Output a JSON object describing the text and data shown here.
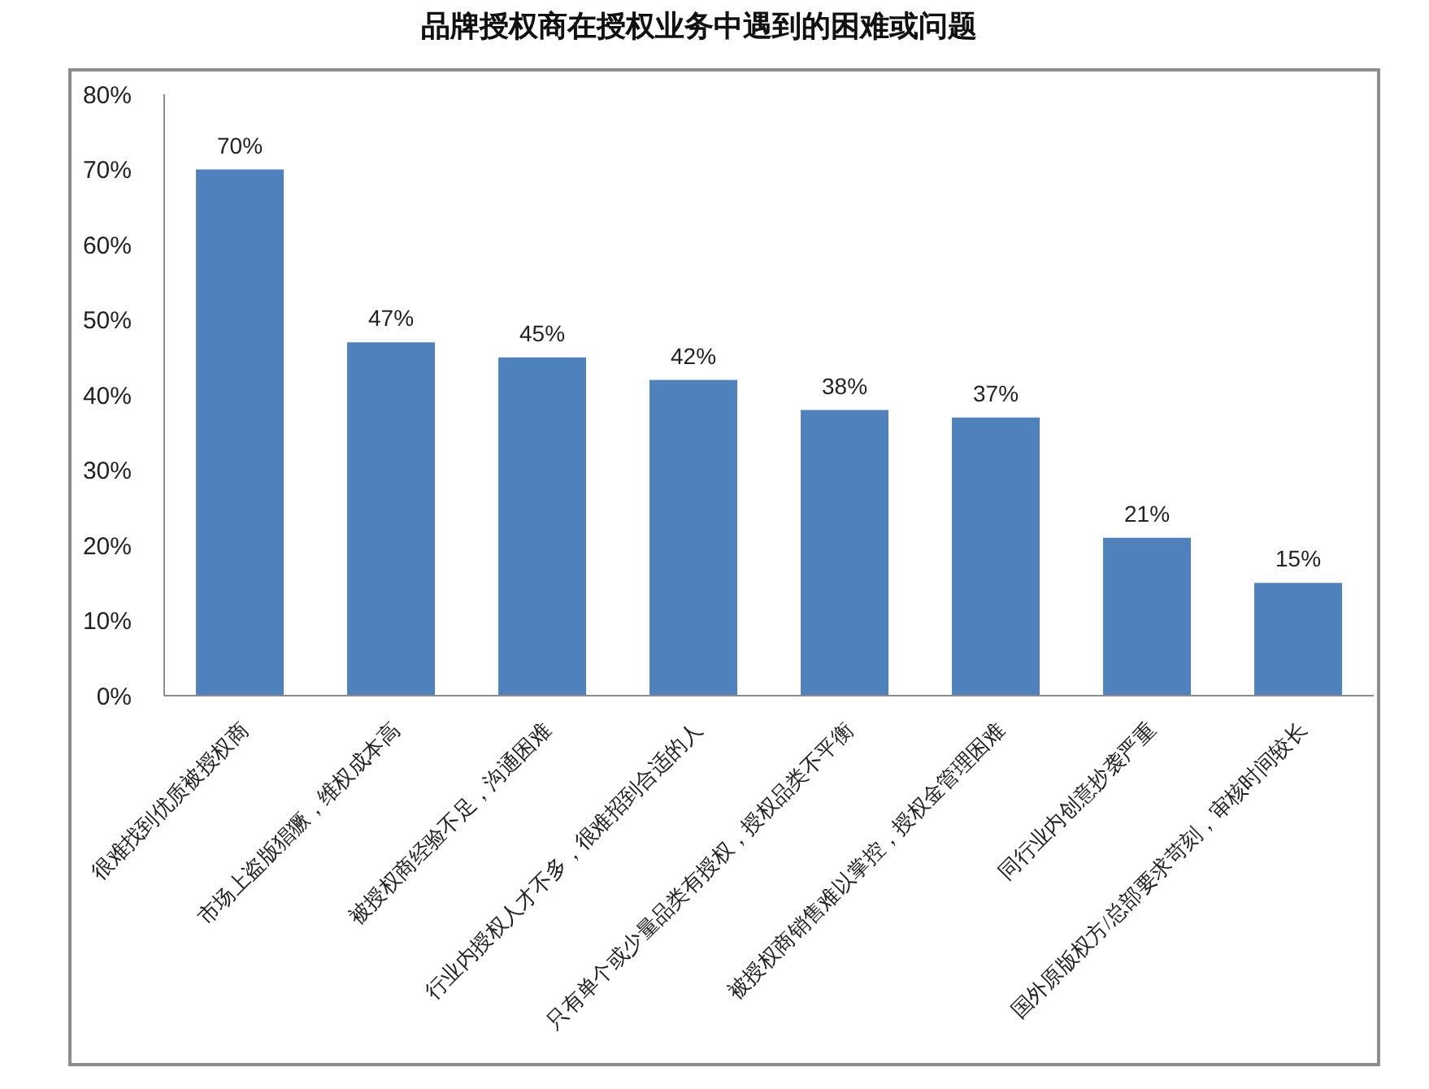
{
  "chart_data": {
    "type": "bar",
    "title": "品牌授权商在授权业务中遇到的困难或问题",
    "categories": [
      "很难找到优质被授权商",
      "市场上盗版猖獗，维权成本高",
      "被授权商经验不足，沟通困难",
      "行业内授权人才不多，很难招到合适的人",
      "只有单个或少量品类有授权，授权品类不平衡",
      "被授权商销售难以掌控，授权金管理困难",
      "同行业内创意抄袭严重",
      "国外原版权方/总部要求苛刻，审核时间较长"
    ],
    "values": [
      70,
      47,
      45,
      42,
      38,
      37,
      21,
      15
    ],
    "value_labels": [
      "70%",
      "47%",
      "45%",
      "42%",
      "38%",
      "37%",
      "21%",
      "15%"
    ],
    "color": "#4f81bd",
    "ylim": [
      0,
      80
    ],
    "yticks": [
      {
        "value": 0,
        "label": "0%"
      },
      {
        "value": 10,
        "label": "10%"
      },
      {
        "value": 20,
        "label": "20%"
      },
      {
        "value": 30,
        "label": "30%"
      },
      {
        "value": 40,
        "label": "40%"
      },
      {
        "value": 50,
        "label": "50%"
      },
      {
        "value": 60,
        "label": "60%"
      },
      {
        "value": 70,
        "label": "70%"
      },
      {
        "value": 80,
        "label": "80%"
      }
    ]
  }
}
